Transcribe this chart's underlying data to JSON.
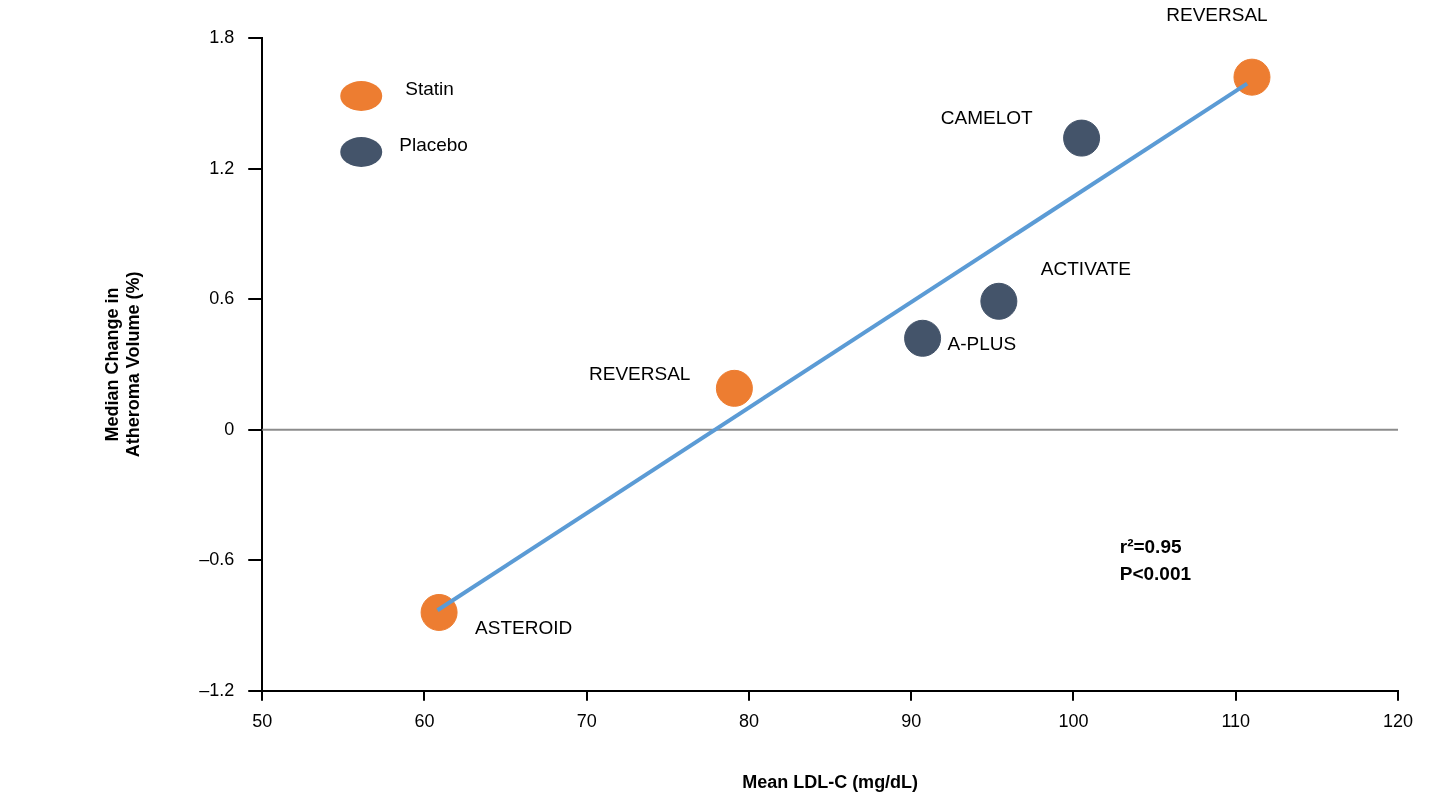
{
  "chart_data": {
    "type": "scatter",
    "xlabel": "Mean LDL-C (mg/dL)",
    "ylabel": "Median Change in Atheroma Volume (%)",
    "xlim": [
      50,
      120
    ],
    "xticks": [
      50,
      60,
      70,
      80,
      90,
      100,
      110,
      120
    ],
    "ylim": [
      -1.2,
      1.8
    ],
    "yticks": [
      {
        "value": -1.2,
        "label": "–1.2"
      },
      {
        "value": -0.6,
        "label": "–0.6"
      },
      0,
      0.6,
      1.2,
      1.8
    ],
    "grid": false,
    "legend": "top left",
    "marker": "circle",
    "series": [
      {
        "name": "Statin",
        "color": "#ed7d31",
        "x": [
          60.9,
          79.1,
          111.0
        ],
        "values": [
          -0.84,
          0.19,
          1.62
        ]
      },
      {
        "name": "Placebo",
        "color": "#44546a",
        "x": [
          100.5,
          95.4,
          90.7
        ],
        "values": [
          1.34,
          0.59,
          0.42
        ]
      },
      {
        "type": "line",
        "color": "#5b9bd5",
        "x": [
          60.8,
          110.7
        ],
        "values": [
          -0.83,
          1.59
        ],
        "marker": "none",
        "line_style": "solid"
      }
    ],
    "ref_lines": [
      {
        "axis": "y",
        "value": 0,
        "color": "#8c8c8c"
      }
    ],
    "annotations": [
      {
        "text": "ASTEROID",
        "x": 60.9,
        "y": -0.84
      },
      {
        "text": "REVERSAL",
        "x": 79.1,
        "y": 0.19
      },
      {
        "text": "REVERSAL",
        "x": 111.0,
        "y": 1.62
      },
      {
        "text": "CAMELOT",
        "x": 100.5,
        "y": 1.34
      },
      {
        "text": "ACTIVATE",
        "x": 95.4,
        "y": 0.59
      },
      {
        "text": "A-PLUS",
        "x": 90.7,
        "y": 0.42
      },
      "r²=0.95",
      "P<0.001"
    ]
  }
}
